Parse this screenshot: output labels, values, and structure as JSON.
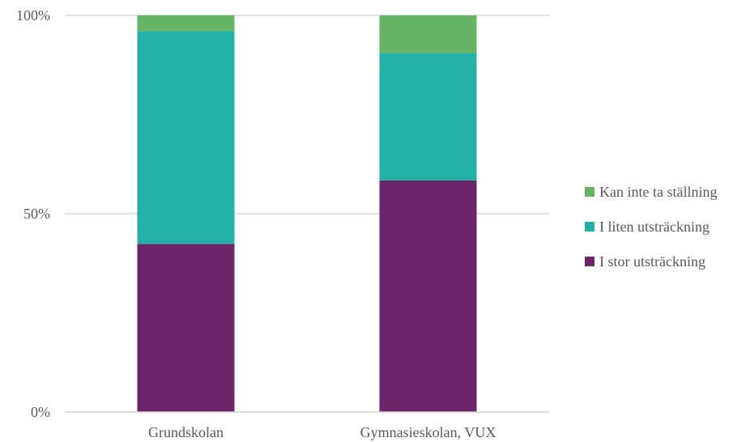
{
  "chart_data": {
    "type": "bar",
    "stacked": "percent",
    "categories": [
      "Grundskolan",
      "Gymnasieskolan, VUX"
    ],
    "series": [
      {
        "name": "I stor utsträckning",
        "values": [
          42.4,
          58.4
        ],
        "color": "#6b2568"
      },
      {
        "name": "I liten utsträckning",
        "values": [
          53.6,
          32.1
        ],
        "color": "#23b0a6"
      },
      {
        "name": "Kan inte ta ställning",
        "values": [
          4.0,
          9.5
        ],
        "color": "#66b564"
      }
    ],
    "yticks": [
      "0%",
      "50%",
      "100%"
    ],
    "ylim": [
      0,
      100
    ],
    "grid": true,
    "legend": "right",
    "legend_order": [
      "Kan inte ta ställning",
      "I liten utsträckning",
      "I stor utsträckning"
    ],
    "title": "",
    "xlabel": "",
    "ylabel": ""
  }
}
